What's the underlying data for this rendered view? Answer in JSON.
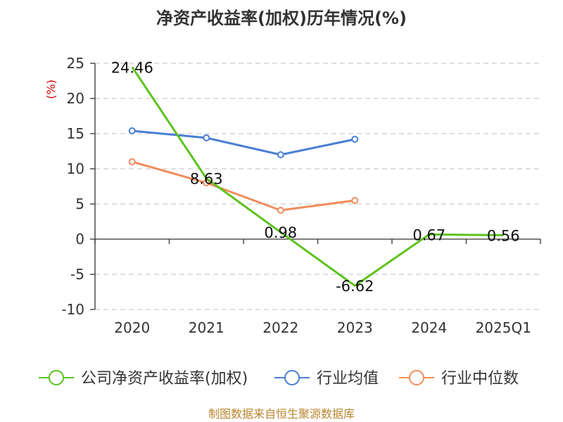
{
  "chart_data": {
    "type": "line",
    "title": "净资产收益率(加权)历年情况(%)",
    "unit_label": "(%)",
    "categories": [
      "2020",
      "2021",
      "2022",
      "2023",
      "2024",
      "2025Q1"
    ],
    "ylim": [
      -10,
      25
    ],
    "yticks": [
      "25",
      "20",
      "15",
      "10",
      "5",
      "0",
      "-5",
      "-10"
    ],
    "ytick_values": [
      25,
      20,
      15,
      10,
      5,
      0,
      -5,
      -10
    ],
    "grid": true,
    "legend_position": "bottom",
    "series": [
      {
        "name": "公司净资产收益率(加权)",
        "color": "#5cc31b",
        "values": [
          24.46,
          8.63,
          0.98,
          -6.62,
          0.67,
          0.56
        ],
        "labels": [
          "24.46",
          "8.63",
          "0.98",
          "-6.62",
          "0.67",
          "0.56"
        ],
        "show_markers": false
      },
      {
        "name": "行业均值",
        "color": "#4a7fd4",
        "values": [
          15.4,
          14.4,
          12.0,
          14.2,
          null,
          null
        ],
        "show_markers": true
      },
      {
        "name": "行业中位数",
        "color": "#f28c5a",
        "values": [
          11.0,
          8.0,
          4.1,
          5.5,
          null,
          null
        ],
        "show_markers": true
      }
    ],
    "source": "制图数据来自恒生聚源数据库"
  }
}
